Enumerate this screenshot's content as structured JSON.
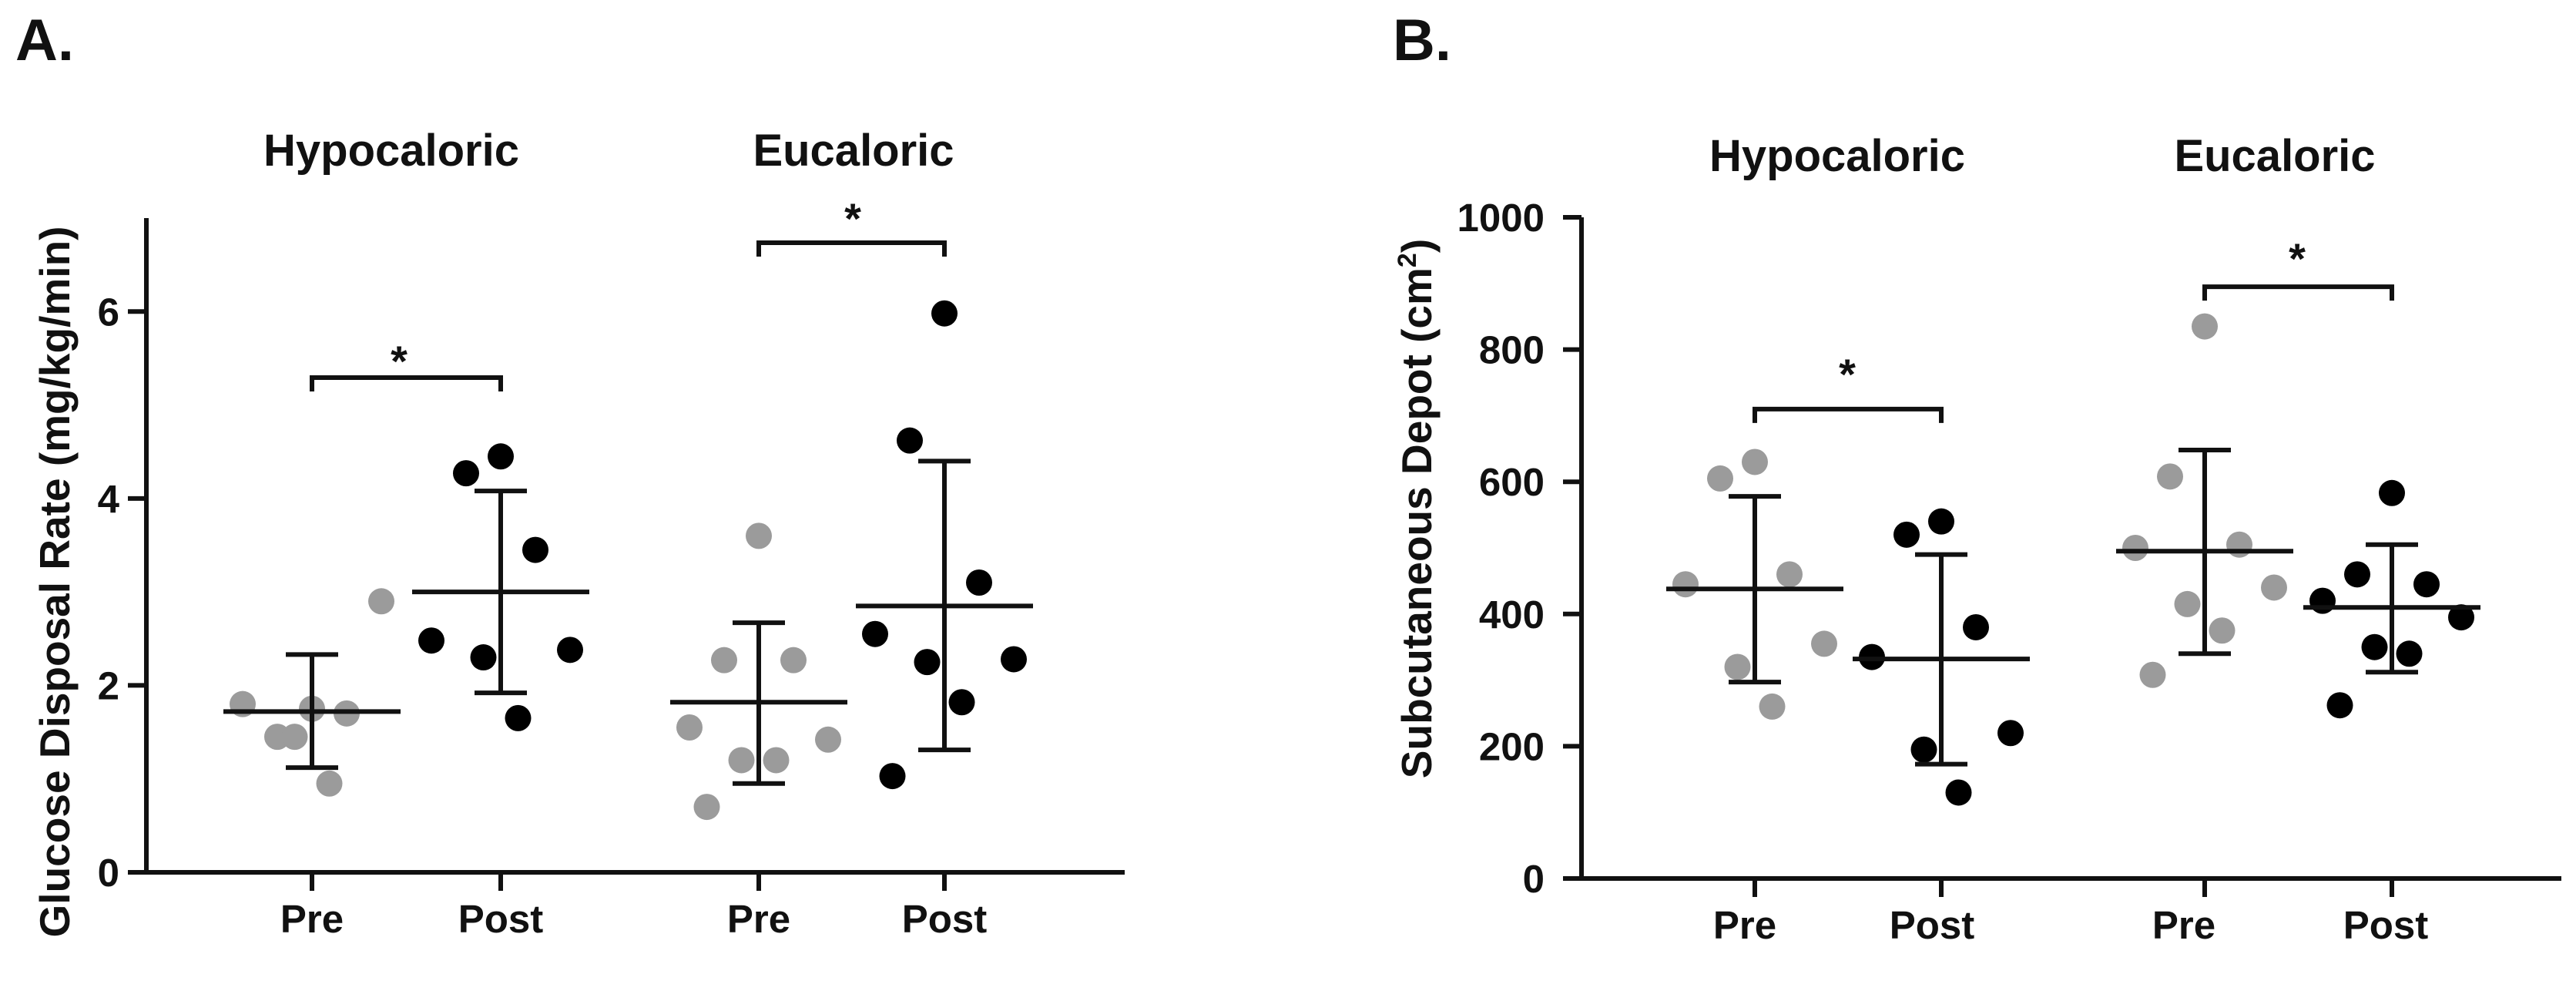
{
  "chart_data": [
    {
      "type": "scatter",
      "panel_label": "A.",
      "ylabel": "Glucose Disposal Rate (mg/kg/min)",
      "ylim": [
        0,
        7
      ],
      "yticks": [
        0,
        2,
        4,
        6
      ],
      "categories": [
        "Pre",
        "Post",
        "Pre",
        "Post"
      ],
      "colors": {
        "pre": "#9b9b9b",
        "post": "#000000"
      },
      "groups": [
        {
          "title": "Hypocaloric",
          "significance": "*",
          "pre": {
            "points": [
              1.75,
              1.45,
              1.7,
              1.8,
              2.9,
              1.45,
              0.95
            ],
            "mean": 1.72,
            "sd_low": 1.12,
            "sd_high": 2.33
          },
          "post": {
            "points": [
              4.45,
              4.27,
              3.45,
              2.48,
              2.38,
              2.3,
              1.65
            ],
            "mean": 3.0,
            "sd_low": 1.92,
            "sd_high": 4.08
          }
        },
        {
          "title": "Eucaloric",
          "significance": "*",
          "pre": {
            "points": [
              3.6,
              2.27,
              2.27,
              1.55,
              1.42,
              1.2,
              1.2,
              0.7
            ],
            "mean": 1.82,
            "sd_low": 0.95,
            "sd_high": 2.67
          },
          "post": {
            "points": [
              5.98,
              4.62,
              3.1,
              2.55,
              2.28,
              2.25,
              1.82,
              1.03
            ],
            "mean": 2.85,
            "sd_low": 1.31,
            "sd_high": 4.4
          }
        }
      ]
    },
    {
      "type": "scatter",
      "panel_label": "B.",
      "ylabel": "Subcutaneous Depot (cm",
      "ylabel_sup": "2",
      "ylabel_close": ")",
      "ylim": [
        0,
        1000
      ],
      "yticks": [
        0,
        200,
        400,
        600,
        800,
        1000
      ],
      "categories": [
        "Pre",
        "Post",
        "Pre",
        "Post"
      ],
      "colors": {
        "pre": "#9b9b9b",
        "post": "#000000"
      },
      "groups": [
        {
          "title": "Hypocaloric",
          "significance": "*",
          "pre": {
            "points": [
              630,
              605,
              460,
              445,
              355,
              320,
              260
            ],
            "mean": 438,
            "sd_low": 297,
            "sd_high": 578
          },
          "post": {
            "points": [
              540,
              520,
              380,
              335,
              220,
              195,
              130
            ],
            "mean": 332,
            "sd_low": 173,
            "sd_high": 490
          },
          "sig_y": 710
        },
        {
          "title": "Eucaloric",
          "significance": "*",
          "pre": {
            "points": [
              835,
              608,
              505,
              500,
              440,
              415,
              375,
              308
            ],
            "mean": 495,
            "sd_low": 340,
            "sd_high": 648
          },
          "post": {
            "points": [
              583,
              460,
              445,
              420,
              395,
              350,
              340,
              262
            ],
            "mean": 410,
            "sd_low": 312,
            "sd_high": 505
          },
          "sig_y": 895
        }
      ]
    }
  ]
}
